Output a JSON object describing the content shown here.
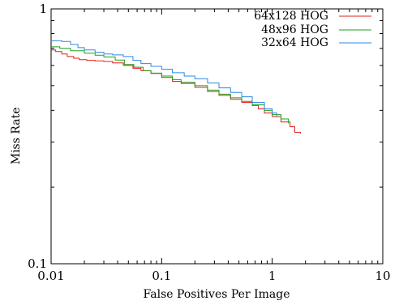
{
  "chart_data": {
    "type": "line",
    "title": "",
    "xlabel": "False Positives Per Image",
    "ylabel": "Miss Rate",
    "xscale": "log",
    "yscale": "log",
    "xlim": [
      0.01,
      10
    ],
    "ylim": [
      0.1,
      1
    ],
    "x_ticks": [
      {
        "value": 0.01,
        "label": "0.01"
      },
      {
        "value": 0.1,
        "label": "0.1"
      },
      {
        "value": 1,
        "label": "1"
      },
      {
        "value": 10,
        "label": "10"
      }
    ],
    "y_ticks": [
      {
        "value": 0.1,
        "label": "0.1"
      },
      {
        "value": 1,
        "label": "1"
      }
    ],
    "grid": false,
    "legend_position": "top-right",
    "series": [
      {
        "name": "64x128 HOG",
        "color": "#e0201c",
        "points": [
          [
            0.01,
            0.69
          ],
          [
            0.011,
            0.68
          ],
          [
            0.0125,
            0.665
          ],
          [
            0.014,
            0.65
          ],
          [
            0.016,
            0.64
          ],
          [
            0.018,
            0.632
          ],
          [
            0.021,
            0.628
          ],
          [
            0.025,
            0.625
          ],
          [
            0.03,
            0.622
          ],
          [
            0.036,
            0.614
          ],
          [
            0.045,
            0.6
          ],
          [
            0.055,
            0.585
          ],
          [
            0.065,
            0.572
          ],
          [
            0.08,
            0.558
          ],
          [
            0.1,
            0.538
          ],
          [
            0.125,
            0.52
          ],
          [
            0.15,
            0.51
          ],
          [
            0.2,
            0.492
          ],
          [
            0.26,
            0.474
          ],
          [
            0.33,
            0.458
          ],
          [
            0.42,
            0.442
          ],
          [
            0.53,
            0.43
          ],
          [
            0.66,
            0.418
          ],
          [
            0.75,
            0.405
          ],
          [
            0.85,
            0.39
          ],
          [
            1.0,
            0.378
          ],
          [
            1.2,
            0.36
          ],
          [
            1.45,
            0.345
          ],
          [
            1.6,
            0.328
          ],
          [
            1.8,
            0.324
          ]
        ]
      },
      {
        "name": "48x96 HOG",
        "color": "#1ca01c",
        "points": [
          [
            0.01,
            0.71
          ],
          [
            0.012,
            0.7
          ],
          [
            0.015,
            0.685
          ],
          [
            0.02,
            0.67
          ],
          [
            0.025,
            0.658
          ],
          [
            0.03,
            0.648
          ],
          [
            0.038,
            0.63
          ],
          [
            0.046,
            0.605
          ],
          [
            0.056,
            0.59
          ],
          [
            0.068,
            0.572
          ],
          [
            0.08,
            0.56
          ],
          [
            0.1,
            0.545
          ],
          [
            0.125,
            0.528
          ],
          [
            0.15,
            0.515
          ],
          [
            0.2,
            0.5
          ],
          [
            0.26,
            0.48
          ],
          [
            0.33,
            0.463
          ],
          [
            0.42,
            0.448
          ],
          [
            0.53,
            0.434
          ],
          [
            0.66,
            0.42
          ],
          [
            0.85,
            0.4
          ],
          [
            1.0,
            0.385
          ],
          [
            1.2,
            0.37
          ],
          [
            1.4,
            0.355
          ]
        ]
      },
      {
        "name": "32x64 HOG",
        "color": "#2f86e8",
        "points": [
          [
            0.01,
            0.75
          ],
          [
            0.0125,
            0.745
          ],
          [
            0.015,
            0.725
          ],
          [
            0.0175,
            0.705
          ],
          [
            0.02,
            0.69
          ],
          [
            0.025,
            0.676
          ],
          [
            0.03,
            0.665
          ],
          [
            0.036,
            0.66
          ],
          [
            0.045,
            0.65
          ],
          [
            0.055,
            0.628
          ],
          [
            0.065,
            0.61
          ],
          [
            0.08,
            0.595
          ],
          [
            0.1,
            0.58
          ],
          [
            0.125,
            0.562
          ],
          [
            0.16,
            0.545
          ],
          [
            0.2,
            0.532
          ],
          [
            0.26,
            0.512
          ],
          [
            0.33,
            0.49
          ],
          [
            0.42,
            0.47
          ],
          [
            0.53,
            0.452
          ],
          [
            0.66,
            0.43
          ],
          [
            0.85,
            0.405
          ],
          [
            1.0,
            0.39
          ],
          [
            1.1,
            0.375
          ]
        ]
      }
    ]
  }
}
